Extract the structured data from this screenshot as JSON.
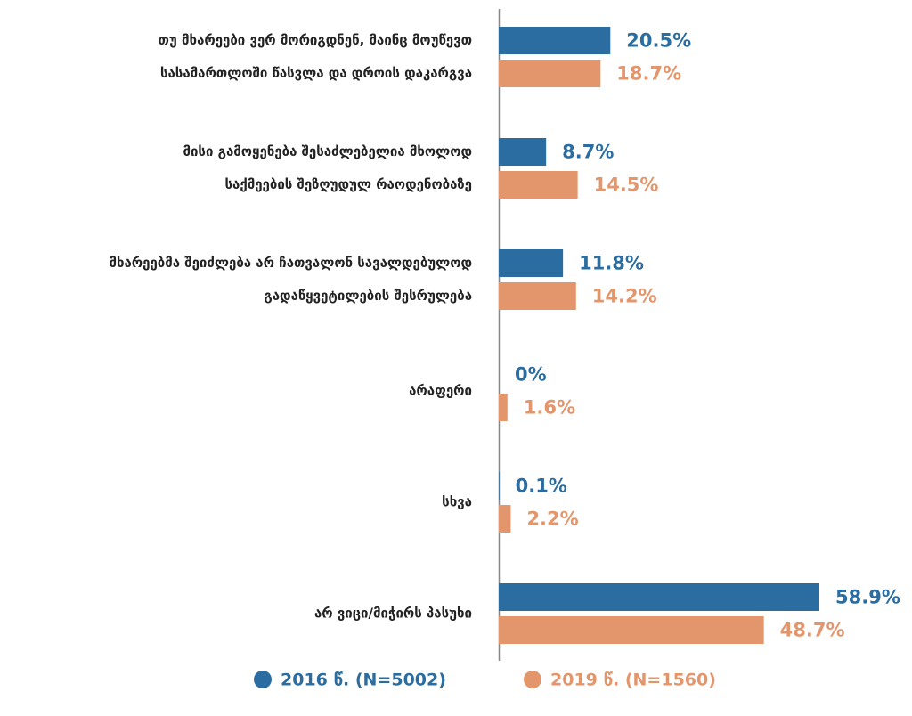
{
  "chart_data": {
    "type": "bar",
    "orientation": "horizontal",
    "categories": [
      [
        "თუ მხარეები ვერ მორიგდნენ, მაინც მოუწევთ",
        "სასამართლოში წასვლა და დროის დაკარგვა"
      ],
      [
        "მისი გამოყენება შესაძლებელია მხოლოდ",
        "საქმეების შეზღუდულ რაოდენობაზე"
      ],
      [
        "მხარეებმა შეიძლება არ ჩათვალონ სავალდებულოდ",
        "გადაწყვეტილების შესრულება"
      ],
      [
        "არაფერი"
      ],
      [
        "სხვა"
      ],
      [
        "არ ვიცი/მიჭირს პასუხი"
      ]
    ],
    "series": [
      {
        "name": "2016 წ. (N=5002)",
        "color": "#2b6da0",
        "values": [
          20.5,
          8.7,
          11.8,
          0,
          0.1,
          58.9
        ],
        "value_labels": [
          "20.5%",
          "8.7%",
          "11.8%",
          "0%",
          "0.1%",
          "58.9%"
        ]
      },
      {
        "name": "2019 წ. (N=1560)",
        "color": "#e3956b",
        "values": [
          18.7,
          14.5,
          14.2,
          1.6,
          2.2,
          48.7
        ],
        "value_labels": [
          "18.7%",
          "14.5%",
          "14.2%",
          "1.6%",
          "2.2%",
          "48.7%"
        ]
      }
    ]
  }
}
